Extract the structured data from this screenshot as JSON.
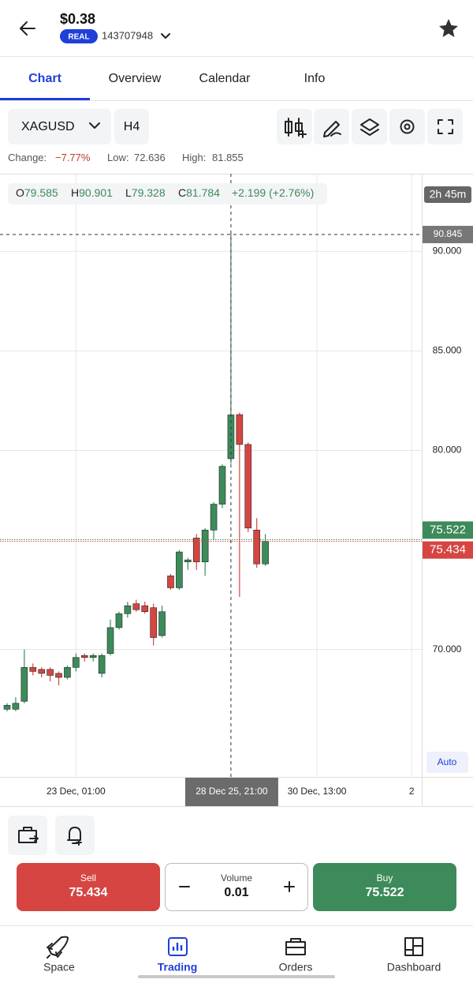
{
  "header": {
    "balance": "$0.38",
    "account_type": "REAL",
    "account_id": "143707948"
  },
  "tabs": [
    "Chart",
    "Overview",
    "Calendar",
    "Info"
  ],
  "toolbar": {
    "symbol": "XAGUSD",
    "timeframe": "H4"
  },
  "stats": {
    "change_label": "Change:",
    "change": "−7.77%",
    "low_label": "Low:",
    "high_label": "High:",
    "high": "81.855"
  },
  "chart_data": {
    "type": "candlestick",
    "categories": [
      null,
      null,
      null,
      null,
      null,
      null,
      null,
      null,
      "23 Dec, 01:00",
      null,
      null,
      null,
      null,
      null,
      null,
      null,
      null,
      null,
      null,
      null,
      null,
      null,
      null,
      null,
      null,
      null,
      "28 Dec 25, 21:00",
      null,
      null,
      null,
      null,
      null,
      null,
      null,
      null,
      null,
      "30 Dec, 13:00",
      null,
      null,
      null,
      null,
      null,
      null,
      null,
      null,
      null,
      null,
      "2"
    ],
    "open": [
      67.0,
      67.0,
      67.4,
      69.1,
      69.0,
      69.0,
      68.8,
      68.6,
      69.1,
      69.7,
      69.6,
      68.8,
      69.8,
      71.1,
      71.8,
      72.3,
      72.2,
      72.1,
      70.7,
      73.7,
      73.1,
      74.4,
      75.6,
      74.4,
      76.0,
      77.3,
      79.585,
      81.8,
      80.3,
      76.0,
      74.3,
      null,
      null,
      null,
      null,
      null,
      null,
      null,
      null,
      null,
      null,
      null,
      null,
      null,
      null,
      null,
      null,
      null
    ],
    "high": [
      67.3,
      67.6,
      70.0,
      69.3,
      69.1,
      69.1,
      68.9,
      69.2,
      69.8,
      69.8,
      69.8,
      69.8,
      71.5,
      71.9,
      72.4,
      72.5,
      72.4,
      72.3,
      72.2,
      73.8,
      75.0,
      74.6,
      75.8,
      76.1,
      77.4,
      79.3,
      90.901,
      81.9,
      80.4,
      76.6,
      75.8,
      null,
      null,
      null,
      null,
      null,
      null,
      null,
      null,
      null,
      null,
      null,
      null,
      null,
      null,
      null,
      null,
      null
    ],
    "low": [
      66.9,
      66.9,
      67.3,
      68.7,
      68.6,
      68.4,
      68.2,
      68.5,
      68.9,
      69.4,
      69.4,
      68.6,
      69.7,
      71.0,
      71.6,
      71.9,
      71.8,
      70.2,
      70.6,
      73.0,
      73.0,
      74.0,
      74.0,
      73.7,
      75.5,
      77.1,
      79.328,
      72.636,
      75.9,
      74.1,
      74.2,
      null,
      null,
      null,
      null,
      null,
      null,
      null,
      null,
      null,
      null,
      null,
      null,
      null,
      null,
      null,
      null,
      null
    ],
    "close": [
      67.2,
      67.3,
      69.1,
      68.9,
      68.8,
      68.7,
      68.6,
      69.1,
      69.6,
      69.6,
      69.7,
      69.7,
      71.1,
      71.8,
      72.2,
      72.0,
      71.9,
      70.6,
      71.9,
      73.1,
      74.9,
      74.5,
      74.4,
      76.0,
      77.3,
      79.2,
      81.784,
      80.3,
      76.1,
      74.3,
      75.434,
      null,
      null,
      null,
      null,
      null,
      null,
      null,
      null,
      null,
      null,
      null,
      null,
      null,
      null,
      null,
      null,
      null
    ],
    "up_color": "#3d8a5a",
    "down_color": "#d64541",
    "ylim": [
      63.6,
      93.9
    ],
    "yticks": [
      {
        "value": 70,
        "label": "70.000"
      },
      {
        "value": 80,
        "label": "80.000"
      },
      {
        "value": 85,
        "label": "85.000"
      },
      {
        "value": 90,
        "label": "90.000"
      }
    ],
    "grid": true,
    "crosshair_price": 90.845,
    "crosshair_index": 26,
    "ask": 75.522,
    "bid": 75.434,
    "countdown": "2h 45m",
    "ohlc_labels": [
      "O",
      "H",
      "L",
      "C"
    ],
    "ohlc_change": "+2.199 (+2.76%)",
    "auto": "Auto"
  },
  "trade": {
    "sell_label": "Sell",
    "buy_label": "Buy",
    "volume_label": "Volume",
    "volume": "0.01"
  },
  "nav": [
    "Space",
    "Trading",
    "Orders",
    "Dashboard"
  ]
}
